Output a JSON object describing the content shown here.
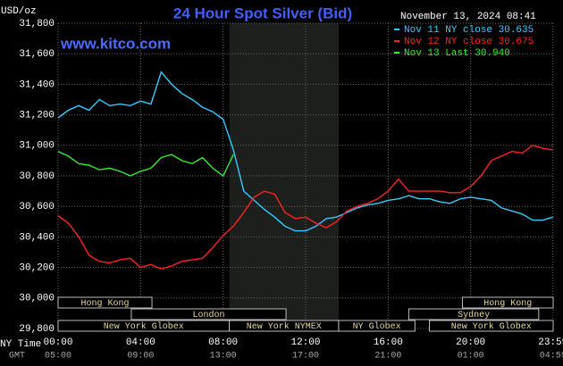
{
  "chart_data": {
    "type": "line",
    "title": "24 Hour Spot Silver (Bid)",
    "y_unit": "USD/oz",
    "timestamp": "November 13, 2024 08:41",
    "site": "www.kitco.com",
    "x_row_label": "NY Time",
    "x2_row_label": "GMT",
    "xlim": [
      0,
      24
    ],
    "ylim": [
      29800,
      31800
    ],
    "xticks": [
      {
        "value": 0,
        "label": "00:00"
      },
      {
        "value": 4,
        "label": "04:00"
      },
      {
        "value": 8,
        "label": "08:00"
      },
      {
        "value": 12,
        "label": "12:00"
      },
      {
        "value": 16,
        "label": "16:00"
      },
      {
        "value": 20,
        "label": "20:00"
      },
      {
        "value": 23.99,
        "label": "23:59"
      }
    ],
    "x2ticks": [
      "05:00",
      "09:00",
      "13:00",
      "17:00",
      "21:00",
      "01:00",
      "04:59"
    ],
    "yticks": [
      {
        "value": 29800,
        "label": "29,800"
      },
      {
        "value": 30000,
        "label": "30,000"
      },
      {
        "value": 30200,
        "label": "30,200"
      },
      {
        "value": 30400,
        "label": "30,400"
      },
      {
        "value": 30600,
        "label": "30,600"
      },
      {
        "value": 30800,
        "label": "30,800"
      },
      {
        "value": 31000,
        "label": "31,000"
      },
      {
        "value": 31200,
        "label": "31,200"
      },
      {
        "value": 31400,
        "label": "31,400"
      },
      {
        "value": 31600,
        "label": "31,600"
      },
      {
        "value": 31800,
        "label": "31,800"
      }
    ],
    "grid": true,
    "x": [
      0,
      0.5,
      1,
      1.5,
      2,
      2.5,
      3,
      3.5,
      4,
      4.5,
      5,
      5.5,
      6,
      6.5,
      7,
      7.5,
      8,
      8.5,
      9,
      9.5,
      10,
      10.5,
      11,
      11.5,
      12,
      12.5,
      13,
      13.5,
      14,
      14.5,
      15,
      15.5,
      16,
      16.5,
      17,
      17.5,
      18,
      18.5,
      19,
      19.5,
      20,
      20.5,
      21,
      21.5,
      22,
      22.5,
      23,
      23.5,
      23.99
    ],
    "series": [
      {
        "name": "Nov 11 NY close 30.635",
        "color": "#33ccff",
        "values": [
          31180,
          31230,
          31260,
          31230,
          31300,
          31260,
          31270,
          31260,
          31290,
          31270,
          31480,
          31400,
          31340,
          31300,
          31250,
          31220,
          31170,
          30970,
          30700,
          30640,
          30580,
          30530,
          30470,
          30440,
          30440,
          30470,
          30520,
          30530,
          30560,
          30590,
          30610,
          30620,
          30640,
          30650,
          30670,
          30650,
          30650,
          30630,
          30620,
          30650,
          30660,
          30650,
          30640,
          30590,
          30570,
          30550,
          30510,
          30510,
          30530
        ]
      },
      {
        "name": "Nov 12 NY close 30.675",
        "color": "#ff2020",
        "values": [
          30540,
          30490,
          30400,
          30280,
          30240,
          30230,
          30250,
          30260,
          30200,
          30220,
          30190,
          30210,
          30240,
          30250,
          30260,
          30330,
          30410,
          30470,
          30560,
          30660,
          30700,
          30680,
          30560,
          30520,
          30530,
          30490,
          30460,
          30500,
          30570,
          30600,
          30620,
          30650,
          30700,
          30780,
          30700,
          30700,
          30700,
          30700,
          30690,
          30690,
          30730,
          30800,
          30900,
          30930,
          30960,
          30950,
          31000,
          30980,
          30970
        ]
      },
      {
        "name": "Nov 13 Last 30.940",
        "color": "#33ee33",
        "values": [
          30960,
          30930,
          30880,
          30870,
          30840,
          30850,
          30830,
          30800,
          30830,
          30850,
          30920,
          30940,
          30900,
          30880,
          30920,
          30850,
          30800,
          30940,
          null,
          null,
          null,
          null,
          null,
          null,
          null,
          null,
          null,
          null,
          null,
          null,
          null,
          null,
          null,
          null,
          null,
          null,
          null,
          null,
          null,
          null,
          null,
          null,
          null,
          null,
          null,
          null,
          null,
          null,
          null
        ]
      }
    ],
    "sessions": [
      {
        "name": "Hong Kong",
        "start": 0,
        "end": 4.55,
        "row": 0
      },
      {
        "name": "Hong Kong",
        "start": 19.6,
        "end": 24,
        "row": 0
      },
      {
        "name": "London",
        "start": 3.55,
        "end": 11.05,
        "row": 1
      },
      {
        "name": "Sydney",
        "start": 17,
        "end": 23.3,
        "row": 1
      },
      {
        "name": "New York Globex",
        "start": 0,
        "end": 8.3,
        "row": 2
      },
      {
        "name": "New York NYMEX",
        "start": 8.3,
        "end": 13.6,
        "row": 2,
        "shaded": true
      },
      {
        "name": "NY Globex",
        "start": 13.6,
        "end": 17.3,
        "row": 2
      },
      {
        "name": "New York Globex",
        "start": 18,
        "end": 24,
        "row": 2
      }
    ]
  }
}
